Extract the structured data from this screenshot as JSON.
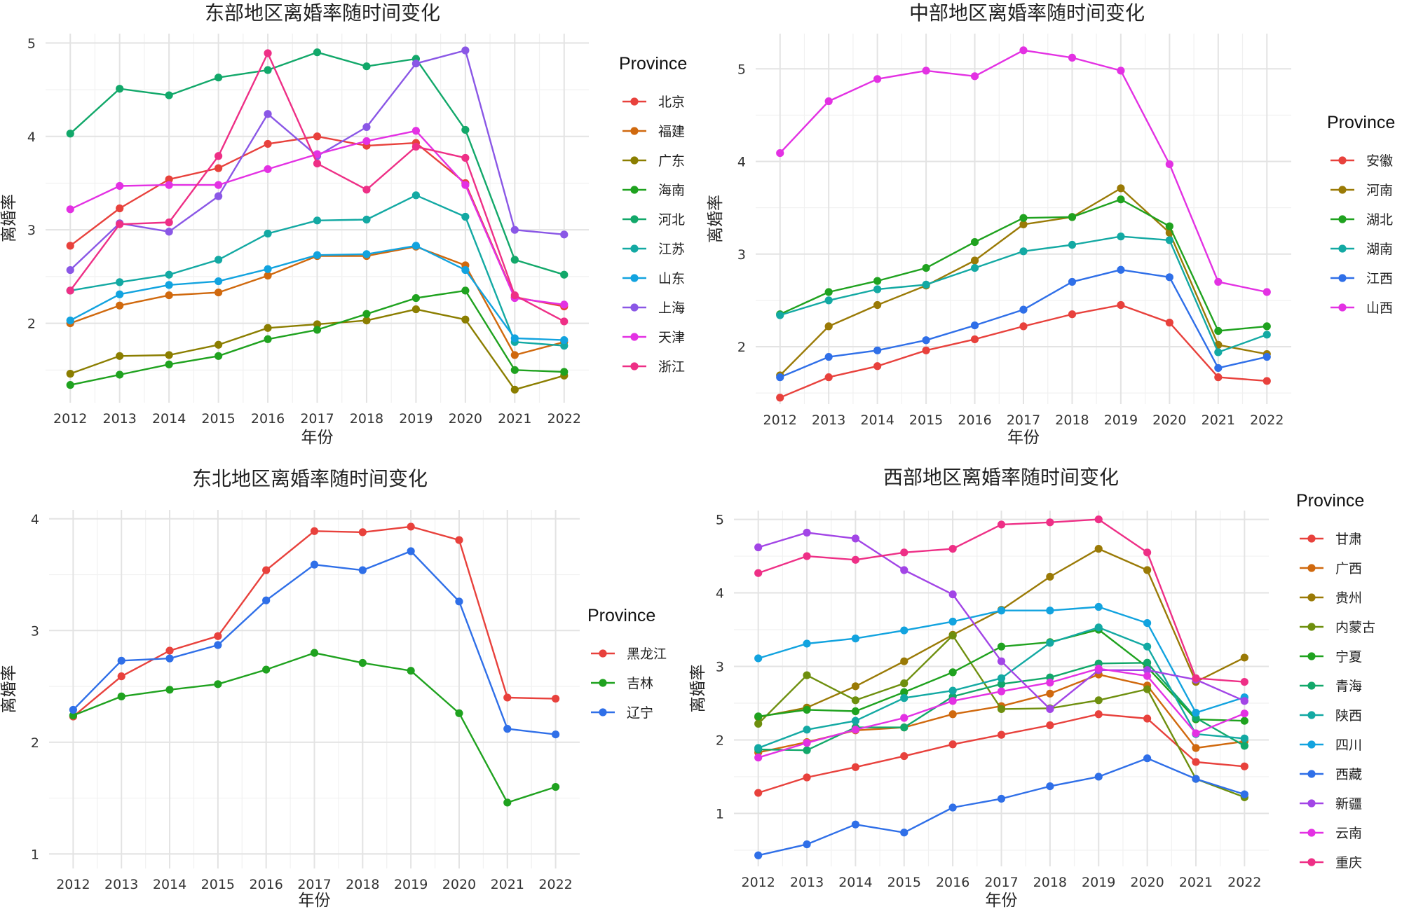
{
  "years": [
    "2012",
    "2013",
    "2014",
    "2015",
    "2016",
    "2017",
    "2018",
    "2019",
    "2020",
    "2021",
    "2022"
  ],
  "colors": {
    "red": "#E8413C",
    "orange": "#D0690E",
    "olive": "#8B7E00",
    "darkgold": "#9A7A06",
    "olivegreen": "#6E8F0E",
    "green": "#1FA21F",
    "teal": "#12A86A",
    "cyan": "#13A9A3",
    "lightblue": "#12A3DF",
    "blue": "#2F6FE8",
    "purple": "#8A57E6",
    "violet": "#A245E6",
    "magenta": "#E331E3",
    "pink": "#EE2F86"
  },
  "chart_data": [
    {
      "id": "east",
      "type": "line",
      "title": "东部地区离婚率随时间变化",
      "xlabel": "年份",
      "ylabel": "离婚率",
      "ylim": [
        1.15,
        5.1
      ],
      "yticks": [
        2,
        3,
        4,
        5
      ],
      "legend_title": "Province",
      "series": [
        {
          "name": "北京",
          "color": "#E8413C",
          "values": [
            2.83,
            3.23,
            3.54,
            3.66,
            3.92,
            4.0,
            3.9,
            3.93,
            3.5,
            2.28,
            2.18
          ]
        },
        {
          "name": "福建",
          "color": "#D0690E",
          "values": [
            2.0,
            2.19,
            2.3,
            2.33,
            2.51,
            2.72,
            2.72,
            2.82,
            2.62,
            1.66,
            1.8
          ]
        },
        {
          "name": "广东",
          "color": "#8B7E00",
          "values": [
            1.46,
            1.65,
            1.66,
            1.77,
            1.95,
            1.99,
            2.03,
            2.15,
            2.04,
            1.29,
            1.44
          ]
        },
        {
          "name": "海南",
          "color": "#1FA21F",
          "values": [
            1.34,
            1.45,
            1.56,
            1.65,
            1.83,
            1.93,
            2.1,
            2.27,
            2.35,
            1.5,
            1.48
          ]
        },
        {
          "name": "河北",
          "color": "#12A86A",
          "values": [
            4.03,
            4.51,
            4.44,
            4.63,
            4.71,
            4.9,
            4.75,
            4.83,
            4.07,
            2.68,
            2.52
          ]
        },
        {
          "name": "江苏",
          "color": "#13A9A3",
          "values": [
            2.35,
            2.44,
            2.52,
            2.68,
            2.96,
            3.1,
            3.11,
            3.37,
            3.14,
            1.8,
            1.76
          ]
        },
        {
          "name": "山东",
          "color": "#12A3DF",
          "values": [
            2.03,
            2.31,
            2.41,
            2.45,
            2.58,
            2.73,
            2.74,
            2.83,
            2.57,
            1.84,
            1.82
          ]
        },
        {
          "name": "上海",
          "color": "#8A57E6",
          "values": [
            2.57,
            3.07,
            2.98,
            3.36,
            4.24,
            3.79,
            4.1,
            4.78,
            4.92,
            3.0,
            2.95
          ]
        },
        {
          "name": "天津",
          "color": "#E331E3",
          "values": [
            3.22,
            3.47,
            3.48,
            3.48,
            3.65,
            3.81,
            3.95,
            4.06,
            3.48,
            2.27,
            2.2
          ]
        },
        {
          "name": "浙江",
          "color": "#EE2F86",
          "values": [
            2.35,
            3.06,
            3.08,
            3.79,
            4.89,
            3.71,
            3.43,
            3.89,
            3.77,
            2.3,
            2.02
          ]
        }
      ]
    },
    {
      "id": "central",
      "type": "line",
      "title": "中部地区离婚率随时间变化",
      "xlabel": "年份",
      "ylabel": "离婚率",
      "ylim": [
        1.38,
        5.38
      ],
      "yticks": [
        2,
        3,
        4,
        5
      ],
      "legend_title": "Province",
      "series": [
        {
          "name": "安徽",
          "color": "#E8413C",
          "values": [
            1.45,
            1.67,
            1.79,
            1.96,
            2.08,
            2.22,
            2.35,
            2.45,
            2.26,
            1.67,
            1.63
          ]
        },
        {
          "name": "河南",
          "color": "#9A7A06",
          "values": [
            1.69,
            2.22,
            2.45,
            2.66,
            2.93,
            3.32,
            3.4,
            3.71,
            3.23,
            2.02,
            1.92
          ]
        },
        {
          "name": "湖北",
          "color": "#1FA21F",
          "values": [
            2.35,
            2.59,
            2.71,
            2.85,
            3.13,
            3.39,
            3.4,
            3.59,
            3.3,
            2.17,
            2.22
          ]
        },
        {
          "name": "湖南",
          "color": "#13A9A3",
          "values": [
            2.34,
            2.5,
            2.62,
            2.67,
            2.85,
            3.03,
            3.1,
            3.19,
            3.15,
            1.94,
            2.13
          ]
        },
        {
          "name": "江西",
          "color": "#2F6FE8",
          "values": [
            1.67,
            1.89,
            1.96,
            2.07,
            2.23,
            2.4,
            2.7,
            2.83,
            2.75,
            1.77,
            1.89
          ]
        },
        {
          "name": "山西",
          "color": "#E331E3",
          "values": [
            4.09,
            4.65,
            4.89,
            4.98,
            4.92,
            5.2,
            5.12,
            4.98,
            3.97,
            2.7,
            2.59
          ]
        }
      ]
    },
    {
      "id": "northeast",
      "type": "line",
      "title": "东北地区离婚率随时间变化",
      "xlabel": "年份",
      "ylabel": "离婚率",
      "ylim": [
        0.87,
        4.08
      ],
      "yticks": [
        1,
        2,
        3,
        4
      ],
      "legend_title": "Province",
      "series": [
        {
          "name": "黑龙江",
          "color": "#E8413C",
          "values": [
            2.23,
            2.59,
            2.82,
            2.95,
            3.54,
            3.89,
            3.88,
            3.93,
            3.81,
            2.4,
            2.39
          ]
        },
        {
          "name": "吉林",
          "color": "#1FA21F",
          "values": [
            2.24,
            2.41,
            2.47,
            2.52,
            2.65,
            2.8,
            2.71,
            2.64,
            2.26,
            1.46,
            1.6
          ]
        },
        {
          "name": "辽宁",
          "color": "#2F6FE8",
          "values": [
            2.29,
            2.73,
            2.75,
            2.87,
            3.27,
            3.59,
            3.54,
            3.71,
            3.26,
            2.12,
            2.07
          ]
        }
      ]
    },
    {
      "id": "west",
      "type": "line",
      "title": "西部地区离婚率随时间变化",
      "xlabel": "年份",
      "ylabel": "离婚率",
      "ylim": [
        0.28,
        5.12
      ],
      "yticks": [
        1,
        2,
        3,
        4,
        5
      ],
      "legend_title": "Province",
      "series": [
        {
          "name": "甘肃",
          "color": "#E8413C",
          "values": [
            1.28,
            1.49,
            1.63,
            1.78,
            1.94,
            2.07,
            2.2,
            2.35,
            2.29,
            1.7,
            1.64
          ]
        },
        {
          "name": "广西",
          "color": "#D0690E",
          "values": [
            1.83,
            1.97,
            2.13,
            2.17,
            2.35,
            2.46,
            2.63,
            2.89,
            2.74,
            1.89,
            1.98
          ]
        },
        {
          "name": "贵州",
          "color": "#9A7A06",
          "values": [
            2.31,
            2.44,
            2.73,
            3.07,
            3.43,
            3.77,
            4.22,
            4.6,
            4.31,
            2.79,
            3.12
          ]
        },
        {
          "name": "内蒙古",
          "color": "#6E8F0E",
          "values": [
            2.22,
            2.88,
            2.54,
            2.77,
            3.42,
            2.42,
            2.43,
            2.54,
            2.69,
            1.47,
            1.22
          ]
        },
        {
          "name": "宁夏",
          "color": "#1FA21F",
          "values": [
            2.32,
            2.41,
            2.39,
            2.65,
            2.92,
            3.27,
            3.33,
            3.5,
            2.99,
            2.28,
            2.26
          ]
        },
        {
          "name": "青海",
          "color": "#12A86A",
          "values": [
            1.87,
            1.86,
            2.17,
            2.17,
            2.59,
            2.76,
            2.85,
            3.04,
            3.05,
            2.3,
            1.92
          ]
        },
        {
          "name": "陕西",
          "color": "#13A9A3",
          "values": [
            1.89,
            2.14,
            2.26,
            2.57,
            2.67,
            2.84,
            3.32,
            3.53,
            3.27,
            2.08,
            2.02
          ]
        },
        {
          "name": "四川",
          "color": "#12A3DF",
          "values": [
            3.11,
            3.31,
            3.38,
            3.49,
            3.61,
            3.76,
            3.76,
            3.81,
            3.59,
            2.37,
            2.58
          ]
        },
        {
          "name": "西藏",
          "color": "#2F6FE8",
          "values": [
            0.43,
            0.58,
            0.85,
            0.74,
            1.08,
            1.2,
            1.37,
            1.5,
            1.75,
            1.47,
            1.26
          ]
        },
        {
          "name": "新疆",
          "color": "#A245E6",
          "values": [
            4.62,
            4.82,
            4.74,
            4.31,
            3.98,
            3.07,
            2.42,
            2.95,
            2.95,
            2.82,
            2.53
          ]
        },
        {
          "name": "云南",
          "color": "#E331E3",
          "values": [
            1.76,
            1.96,
            2.14,
            2.3,
            2.53,
            2.66,
            2.78,
            2.97,
            2.87,
            2.09,
            2.36
          ]
        },
        {
          "name": "重庆",
          "color": "#EE2F86",
          "values": [
            4.27,
            4.5,
            4.45,
            4.55,
            4.6,
            4.93,
            4.96,
            5.0,
            4.55,
            2.84,
            2.79
          ]
        }
      ]
    }
  ]
}
